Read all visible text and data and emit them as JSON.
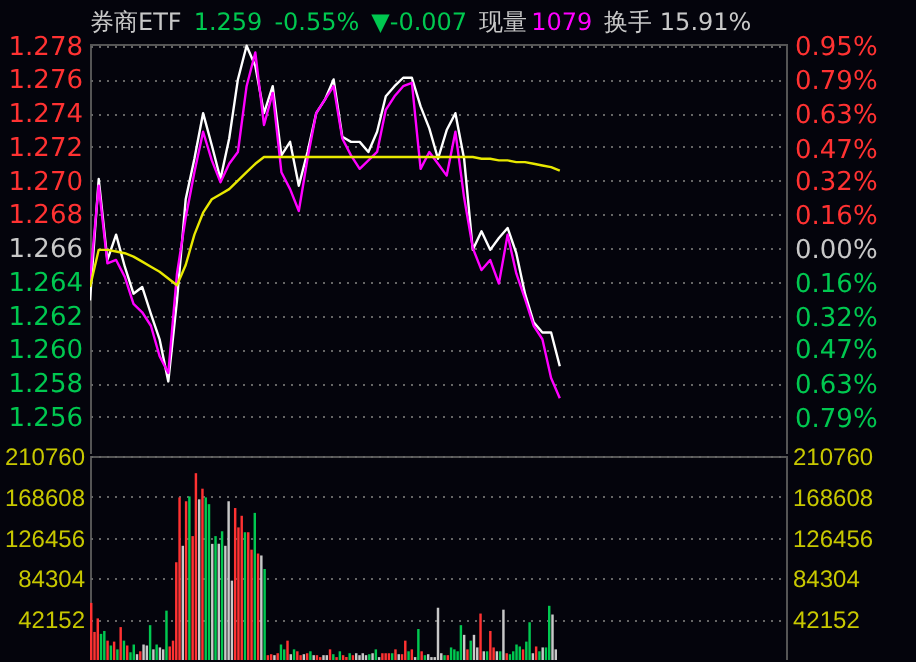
{
  "chart_data": [
    {
      "type": "line",
      "title": "券商ETF",
      "annotations": [
        "1.259",
        "-0.55%",
        "▼-0.007",
        "现量",
        "1079",
        "换手 15.91%"
      ],
      "categories": [
        null,
        null,
        null,
        null,
        null,
        null,
        null,
        null,
        null,
        null,
        null,
        null,
        null,
        null,
        null,
        null,
        null,
        null,
        null,
        null,
        null,
        null,
        null,
        null,
        null,
        null,
        null,
        null,
        null,
        null,
        null,
        null,
        null,
        null,
        null,
        null,
        null,
        null,
        null,
        null,
        null,
        null,
        null,
        null,
        null,
        null,
        null,
        null,
        null,
        null,
        null,
        null,
        null,
        null,
        null,
        null,
        null,
        null,
        null,
        null,
        null,
        null,
        null,
        null,
        null,
        null,
        null,
        null,
        null,
        null,
        null,
        null,
        null,
        null,
        null,
        null,
        null,
        null,
        null,
        null,
        null
      ],
      "ylim": [
        1.2538,
        1.2781
      ],
      "yticks": [
        1.256,
        1.258,
        {
          "value": 1.26,
          "label": "1.260"
        },
        1.262,
        1.264,
        1.266,
        1.268,
        {
          "value": 1.27,
          "label": "1.270"
        },
        1.272,
        1.274,
        1.276,
        1.278
      ],
      "y2lim": [
        -0.96,
        0.96
      ],
      "y2ticks": [
        {
          "value": -0.79,
          "label": "0.79%"
        },
        {
          "value": -0.63,
          "label": "0.63%"
        },
        {
          "value": -0.47,
          "label": "0.47%"
        },
        {
          "value": -0.32,
          "label": "0.32%"
        },
        {
          "value": -0.16,
          "label": "0.16%"
        },
        {
          "value": 0,
          "label": "0.00%"
        },
        {
          "value": 0.16,
          "label": "0.16%"
        },
        {
          "value": 0.32,
          "label": "0.32%"
        },
        {
          "value": 0.47,
          "label": "0.47%"
        },
        {
          "value": 0.63,
          "label": "0.63%"
        },
        {
          "value": 0.79,
          "label": "0.79%"
        },
        {
          "value": 0.95,
          "label": "0.95%"
        }
      ],
      "grid": "y",
      "series": [
        {
          "color": "#ffffff",
          "values": [
            1.2629,
            1.2701,
            1.2653,
            1.2668,
            1.2649,
            1.2633,
            1.2637,
            1.2621,
            1.2606,
            1.2581,
            1.2629,
            1.2689,
            1.2713,
            1.274,
            1.2721,
            1.2701,
            1.2725,
            1.276,
            1.278,
            1.2768,
            1.274,
            1.2756,
            1.2715,
            1.2723,
            1.2697,
            1.2717,
            1.274,
            1.2748,
            1.276,
            1.2726,
            1.2723,
            1.2723,
            1.2717,
            1.2729,
            1.275,
            1.2756,
            1.2761,
            1.2761,
            1.2744,
            1.2731,
            1.2713,
            1.273,
            1.274,
            1.2713,
            1.2659,
            1.267,
            1.2659,
            1.2666,
            1.2672,
            1.2657,
            1.2633,
            1.2616,
            1.261,
            1.261,
            1.259,
            null,
            null,
            null,
            null,
            null,
            null,
            null,
            null,
            null,
            null,
            null,
            null,
            null,
            null,
            null,
            null,
            null,
            null,
            null,
            null,
            null,
            null,
            null,
            null,
            null,
            null
          ]
        },
        {
          "color": "#ff00ff",
          "values": [
            1.2641,
            1.2697,
            1.2651,
            1.2653,
            1.2643,
            1.2627,
            1.2622,
            1.2614,
            1.2596,
            1.2586,
            1.2645,
            1.2678,
            1.2705,
            1.2729,
            1.2712,
            1.2699,
            1.271,
            1.2717,
            1.2756,
            1.2776,
            1.2733,
            1.2752,
            1.2705,
            1.2695,
            1.2682,
            1.2713,
            1.274,
            1.2748,
            1.2756,
            1.2725,
            1.2715,
            1.2707,
            1.2712,
            1.2717,
            1.2742,
            1.275,
            1.2756,
            1.2758,
            1.2707,
            1.2717,
            1.271,
            1.2703,
            1.2729,
            1.269,
            1.266,
            1.2647,
            1.2653,
            1.2639,
            1.2668,
            1.2645,
            1.263,
            1.2614,
            1.2606,
            1.2583,
            1.2571,
            null,
            null,
            null,
            null,
            null,
            null,
            null,
            null,
            null,
            null,
            null,
            null,
            null,
            null,
            null,
            null,
            null,
            null,
            null,
            null,
            null,
            null,
            null,
            null,
            null,
            null
          ]
        },
        {
          "color": "#e8e800",
          "values": [
            1.2637,
            1.2659,
            1.2659,
            1.2658,
            1.2657,
            1.2655,
            1.2652,
            1.2649,
            1.2646,
            1.2642,
            1.2638,
            1.265,
            1.2668,
            1.2681,
            1.2689,
            1.2692,
            1.2695,
            1.27,
            1.2705,
            1.271,
            1.2714,
            1.2714,
            1.2714,
            1.2714,
            1.2714,
            1.2714,
            1.2714,
            1.2714,
            1.2714,
            1.2714,
            1.2714,
            1.2714,
            1.2714,
            1.2714,
            1.2714,
            1.2714,
            1.2714,
            1.2714,
            1.2714,
            1.2714,
            1.2714,
            1.2714,
            1.2714,
            1.2714,
            1.2714,
            1.2713,
            1.2713,
            1.2712,
            1.2712,
            1.2711,
            1.2711,
            1.271,
            1.2709,
            1.2708,
            1.2706,
            null,
            null,
            null,
            null,
            null,
            null,
            null,
            null,
            null,
            null,
            null,
            null,
            null,
            null,
            null,
            null,
            null,
            null,
            null,
            null,
            null,
            null,
            null,
            null,
            null,
            null
          ]
        }
      ]
    },
    {
      "type": "bar",
      "categories": [
        null,
        null,
        null,
        null,
        null,
        null,
        null,
        null,
        null,
        null,
        null,
        null,
        null,
        null,
        null,
        null,
        null,
        null,
        null,
        null,
        null,
        null,
        null,
        null,
        null,
        null,
        null,
        null,
        null,
        null,
        null,
        null,
        null,
        null,
        null,
        null,
        null,
        null,
        null,
        null,
        null,
        null,
        null,
        null,
        null,
        null,
        null,
        null,
        null,
        null,
        null,
        null,
        null,
        null,
        null,
        null,
        null,
        null,
        null,
        null,
        null,
        null,
        null,
        null,
        null,
        null,
        null,
        null,
        null,
        null,
        null,
        null,
        null,
        null,
        null,
        null,
        null,
        null,
        null,
        null,
        null,
        null,
        null,
        null,
        null,
        null,
        null,
        null,
        null,
        null,
        null,
        null,
        null,
        null,
        null,
        null,
        null,
        null,
        null,
        null,
        null,
        null,
        null,
        null,
        null,
        null,
        null,
        null,
        null,
        null,
        null,
        null,
        null,
        null,
        null,
        null,
        null,
        null,
        null,
        null,
        null,
        null,
        null,
        null,
        null,
        null,
        null,
        null,
        null,
        null,
        null,
        null,
        null,
        null,
        null,
        null,
        null,
        null,
        null,
        null,
        null,
        null,
        null,
        null,
        null,
        null,
        null,
        null,
        null,
        null,
        null,
        null,
        null,
        null,
        null,
        null,
        null,
        null,
        null,
        null,
        null,
        null,
        null,
        null,
        null,
        null,
        null,
        null,
        null,
        null,
        null,
        null,
        null,
        null,
        null,
        null,
        null,
        null,
        null,
        null,
        null,
        null,
        null,
        null,
        null,
        null,
        null,
        null,
        null,
        null,
        null,
        null,
        null,
        null,
        null,
        null,
        null,
        null,
        null,
        null,
        null,
        null,
        null,
        null,
        null,
        null,
        null,
        null,
        null,
        null,
        null,
        null,
        null
      ],
      "ylim": [
        0,
        210760
      ],
      "yticks": [
        42152,
        84304,
        126456,
        168608,
        210760
      ],
      "y2lim": [
        0,
        210760
      ],
      "y2ticks": [
        42152,
        84304,
        126456,
        168608,
        210760
      ],
      "grid": "y",
      "values": [
        59000,
        29000,
        43000,
        27000,
        30000,
        20000,
        15000,
        19000,
        11000,
        34000,
        20000,
        15000,
        8000,
        16000,
        6000,
        9000,
        16000,
        15000,
        36000,
        11000,
        16000,
        13000,
        11000,
        51000,
        14000,
        20000,
        101000,
        168000,
        118000,
        164000,
        169000,
        128000,
        193000,
        166000,
        177000,
        168000,
        161000,
        120000,
        128000,
        120000,
        133000,
        118000,
        164000,
        82000,
        157000,
        137000,
        149000,
        132000,
        132000,
        114000,
        152000,
        110000,
        108000,
        94000,
        5000,
        6000,
        5000,
        7000,
        16000,
        11000,
        20000,
        6000,
        11000,
        9000,
        5000,
        6000,
        7000,
        9000,
        5000,
        5000,
        3000,
        5000,
        5000,
        11000,
        6000,
        3000,
        9000,
        5000,
        3000,
        7000,
        5000,
        7000,
        5000,
        7000,
        5000,
        6000,
        7000,
        11000,
        3000,
        7000,
        7000,
        7000,
        7000,
        11000,
        6000,
        6000,
        20000,
        9000,
        11000,
        3000,
        32000,
        9000,
        5000,
        6000,
        3000,
        3000,
        54000,
        7000,
        5000,
        5000,
        13000,
        11000,
        9000,
        36000,
        26000,
        11000,
        20000,
        26000,
        13000,
        48000,
        9000,
        9000,
        30000,
        13000,
        9000,
        9000,
        52000,
        7000,
        6000,
        9000,
        16000,
        14000,
        11000,
        19000,
        39000,
        7000,
        14000,
        9000,
        13000,
        13000,
        56000,
        47000,
        11000,
        null,
        null,
        null,
        null,
        null,
        null,
        null,
        null,
        null,
        null,
        null,
        null,
        null,
        null,
        null,
        null,
        null,
        null,
        null,
        null,
        null,
        null,
        null,
        null,
        null,
        null,
        null,
        null,
        null,
        null,
        null,
        null,
        null,
        null,
        null,
        null,
        null,
        null,
        null,
        null,
        null,
        null,
        null,
        null,
        null,
        null,
        null,
        null,
        null,
        null,
        null,
        null,
        null,
        null,
        null,
        null,
        null,
        null,
        null,
        null,
        null,
        null,
        null,
        null,
        null,
        null,
        null,
        null,
        null,
        null
      ],
      "colors": [
        "#ff3232",
        "#ff3232",
        "#ff3232",
        "#00c850",
        "#00c850",
        "#ff3232",
        "#00c850",
        "#ff3232",
        "#00c850",
        "#ff3232",
        "#00c850",
        "#ff3232",
        "#00c850",
        "#00c850",
        "#c8c8c8",
        "#ff3232",
        "#c8c8c8",
        "#c8c8c8",
        "#00c850",
        "#c8c8c8",
        "#00c850",
        "#c8c8c8",
        "#c8c8c8",
        "#00c850",
        "#ff3232",
        "#ff3232",
        "#ff3232",
        "#ff3232",
        "#c8c8c8",
        "#ff3232",
        "#00c850",
        "#ff3232",
        "#ff3232",
        "#c8c8c8",
        "#ff3232",
        "#00c850",
        "#00c850",
        "#c8c8c8",
        "#00c850",
        "#c8c8c8",
        "#00c850",
        "#c8c8c8",
        "#c8c8c8",
        "#c8c8c8",
        "#ff3232",
        "#ff3232",
        "#ff3232",
        "#00c850",
        "#ff3232",
        "#ff3232",
        "#00c850",
        "#ff3232",
        "#c8c8c8",
        "#00c850",
        "#ff3232",
        "#ff3232",
        "#c8c8c8",
        "#ff3232",
        "#00c850",
        "#00c850",
        "#ff3232",
        "#c8c8c8",
        "#00c850",
        "#ff3232",
        "#ff3232",
        "#c8c8c8",
        "#ff3232",
        "#00c850",
        "#c8c8c8",
        "#ff3232",
        "#ff3232",
        "#c8c8c8",
        "#c8c8c8",
        "#ff3232",
        "#00c850",
        "#ff3232",
        "#00c850",
        "#ff3232",
        "#ff3232",
        "#00c850",
        "#ff3232",
        "#c8c8c8",
        "#c8c8c8",
        "#c8c8c8",
        "#c8c8c8",
        "#00c850",
        "#c8c8c8",
        "#00c850",
        "#c8c8c8",
        "#ff3232",
        "#ff3232",
        "#ff3232",
        "#00c850",
        "#ff3232",
        "#c8c8c8",
        "#ff3232",
        "#ff3232",
        "#00c850",
        "#ff3232",
        "#c8c8c8",
        "#00c850",
        "#ff3232",
        "#00c850",
        "#c8c8c8",
        "#c8c8c8",
        "#c8c8c8",
        "#c8c8c8",
        "#c8c8c8",
        "#00c850",
        "#ff3232",
        "#00c850",
        "#00c850",
        "#00c850",
        "#00c850",
        "#c8c8c8",
        "#ff3232",
        "#00c850",
        "#c8c8c8",
        "#c8c8c8",
        "#ff3232",
        "#c8c8c8",
        "#00c850",
        "#ff3232",
        "#ff3232",
        "#c8c8c8",
        "#00c850",
        "#c8c8c8",
        "#ff3232",
        "#00c850",
        "#00c850",
        "#00c850",
        "#00c850",
        "#ff3232",
        "#00c850",
        "#00c850",
        "#c8c8c8",
        "#ff3232",
        "#00c850",
        "#c8c8c8",
        "#00c850",
        "#00c850",
        "#c8c8c8",
        "#c8c8c8",
        null,
        null,
        null,
        null,
        null,
        null,
        null,
        null,
        null,
        null,
        null,
        null,
        null,
        null,
        null,
        null,
        null,
        null,
        null,
        null,
        null,
        null,
        null,
        null,
        null,
        null,
        null,
        null,
        null,
        null,
        null,
        null,
        null,
        null,
        null,
        null,
        null,
        null,
        null,
        null,
        null,
        null,
        null,
        null,
        null,
        null,
        null,
        null,
        null,
        null,
        null,
        null,
        null,
        null,
        null,
        null,
        null,
        null,
        null,
        null,
        null,
        null,
        null,
        null,
        null,
        null,
        null,
        null,
        null,
        null
      ]
    }
  ]
}
